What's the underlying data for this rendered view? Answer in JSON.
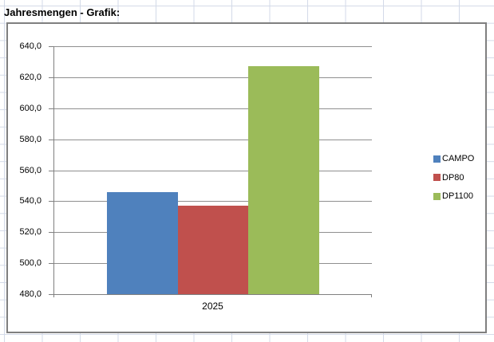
{
  "sheet": {
    "title": "Jahresmengen - Grafik:"
  },
  "chart_data": {
    "type": "bar",
    "title": "",
    "xlabel": "",
    "ylabel": "",
    "categories": [
      "2025"
    ],
    "series": [
      {
        "name": "CAMPO",
        "values": [
          546.0
        ],
        "color": "#4F81BD"
      },
      {
        "name": "DP80",
        "values": [
          537.0
        ],
        "color": "#C0504D"
      },
      {
        "name": "DP1100",
        "values": [
          627.0
        ],
        "color": "#9BBB59"
      }
    ],
    "ylim": [
      480,
      640
    ],
    "ytick_step": 20,
    "ytick_labels_top_to_bottom": [
      "640,0",
      "620,0",
      "600,0",
      "580,0",
      "560,0",
      "540,0",
      "520,0",
      "500,0",
      "480,0"
    ],
    "grid": true,
    "legend_position": "right",
    "axis_color": "#808080",
    "gridline_color": "#8F8F8F",
    "sheet_gridline_color": "#D3DAE8"
  }
}
